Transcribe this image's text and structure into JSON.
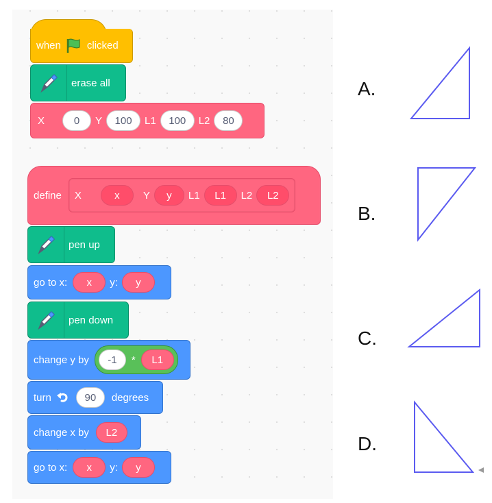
{
  "script_main": {
    "hat": {
      "when": "when",
      "clicked": "clicked",
      "flag_icon": "green-flag-icon"
    },
    "erase": {
      "label": "erase all"
    },
    "call": {
      "x_label": "X",
      "x": "0",
      "y_label": "Y",
      "y": "100",
      "l1_label": "L1",
      "l1": "100",
      "l2_label": "L2",
      "l2": "80"
    }
  },
  "define_script": {
    "define": {
      "label": "define",
      "x_label": "X",
      "x_param": "x",
      "y_label": "Y",
      "y_param": "y",
      "l1_label": "L1",
      "l1_param": "L1",
      "l2_label": "L2",
      "l2_param": "L2"
    },
    "pen_up": {
      "label": "pen up"
    },
    "goto1": {
      "label": "go to x:",
      "x": "x",
      "y_label": "y:",
      "y": "y"
    },
    "pen_down": {
      "label": "pen down"
    },
    "change_y": {
      "label": "change y by",
      "factor": "-1",
      "op": "*",
      "arg": "L1"
    },
    "turn": {
      "label": "turn",
      "value": "90",
      "unit": "degrees",
      "icon": "rotate-left-icon"
    },
    "change_x": {
      "label": "change x by",
      "arg": "L2"
    },
    "goto2": {
      "label": "go to x:",
      "x": "x",
      "y_label": "y:",
      "y": "y"
    }
  },
  "answers": [
    {
      "label": "A."
    },
    {
      "label": "B."
    },
    {
      "label": "C."
    },
    {
      "label": "D."
    }
  ],
  "colors": {
    "event": "#ffbf00",
    "pen": "#0fbd8c",
    "custom": "#ff6680",
    "motion": "#4c97ff",
    "operator": "#59c059",
    "triangle": "#5b5bf0"
  }
}
